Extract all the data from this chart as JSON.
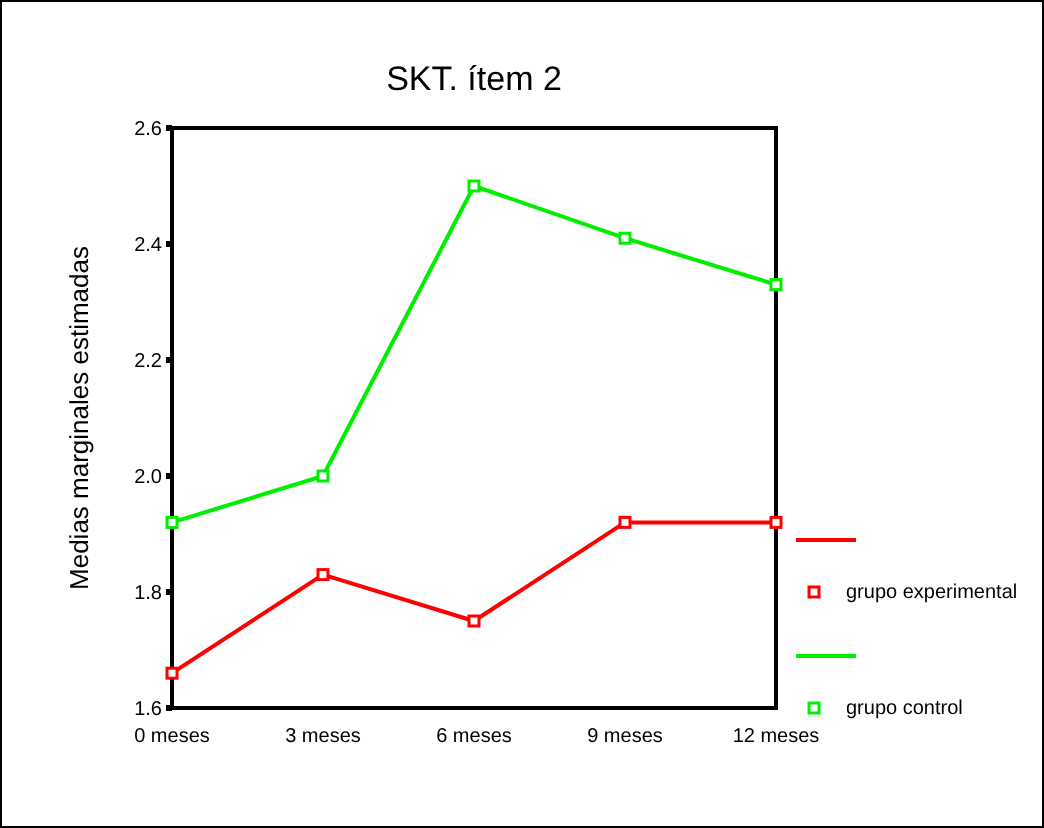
{
  "chart_data": {
    "type": "line",
    "title": "SKT. ítem 2",
    "ylabel": "Medias marginales estimadas",
    "categories": [
      "0 meses",
      "3 meses",
      "6 meses",
      "9 meses",
      "12 meses"
    ],
    "series": [
      {
        "name": "grupo experimental",
        "color": "#ff0000",
        "values": [
          1.66,
          1.83,
          1.75,
          1.92,
          1.92
        ]
      },
      {
        "name": "grupo control",
        "color": "#00ee00",
        "values": [
          1.92,
          2.0,
          2.5,
          2.41,
          2.33
        ]
      }
    ],
    "ylim": [
      1.6,
      2.6
    ],
    "yticks": [
      {
        "value": 1.6,
        "label": "1.6"
      },
      {
        "value": 1.8,
        "label": "1.8"
      },
      {
        "value": 2.0,
        "label": "2.0"
      },
      {
        "value": 2.2,
        "label": "2.2"
      },
      {
        "value": 2.4,
        "label": "2.4"
      },
      {
        "value": 2.6,
        "label": "2.6"
      }
    ],
    "grid": false,
    "legend": "right",
    "marker": "square",
    "line_style": "solid"
  }
}
